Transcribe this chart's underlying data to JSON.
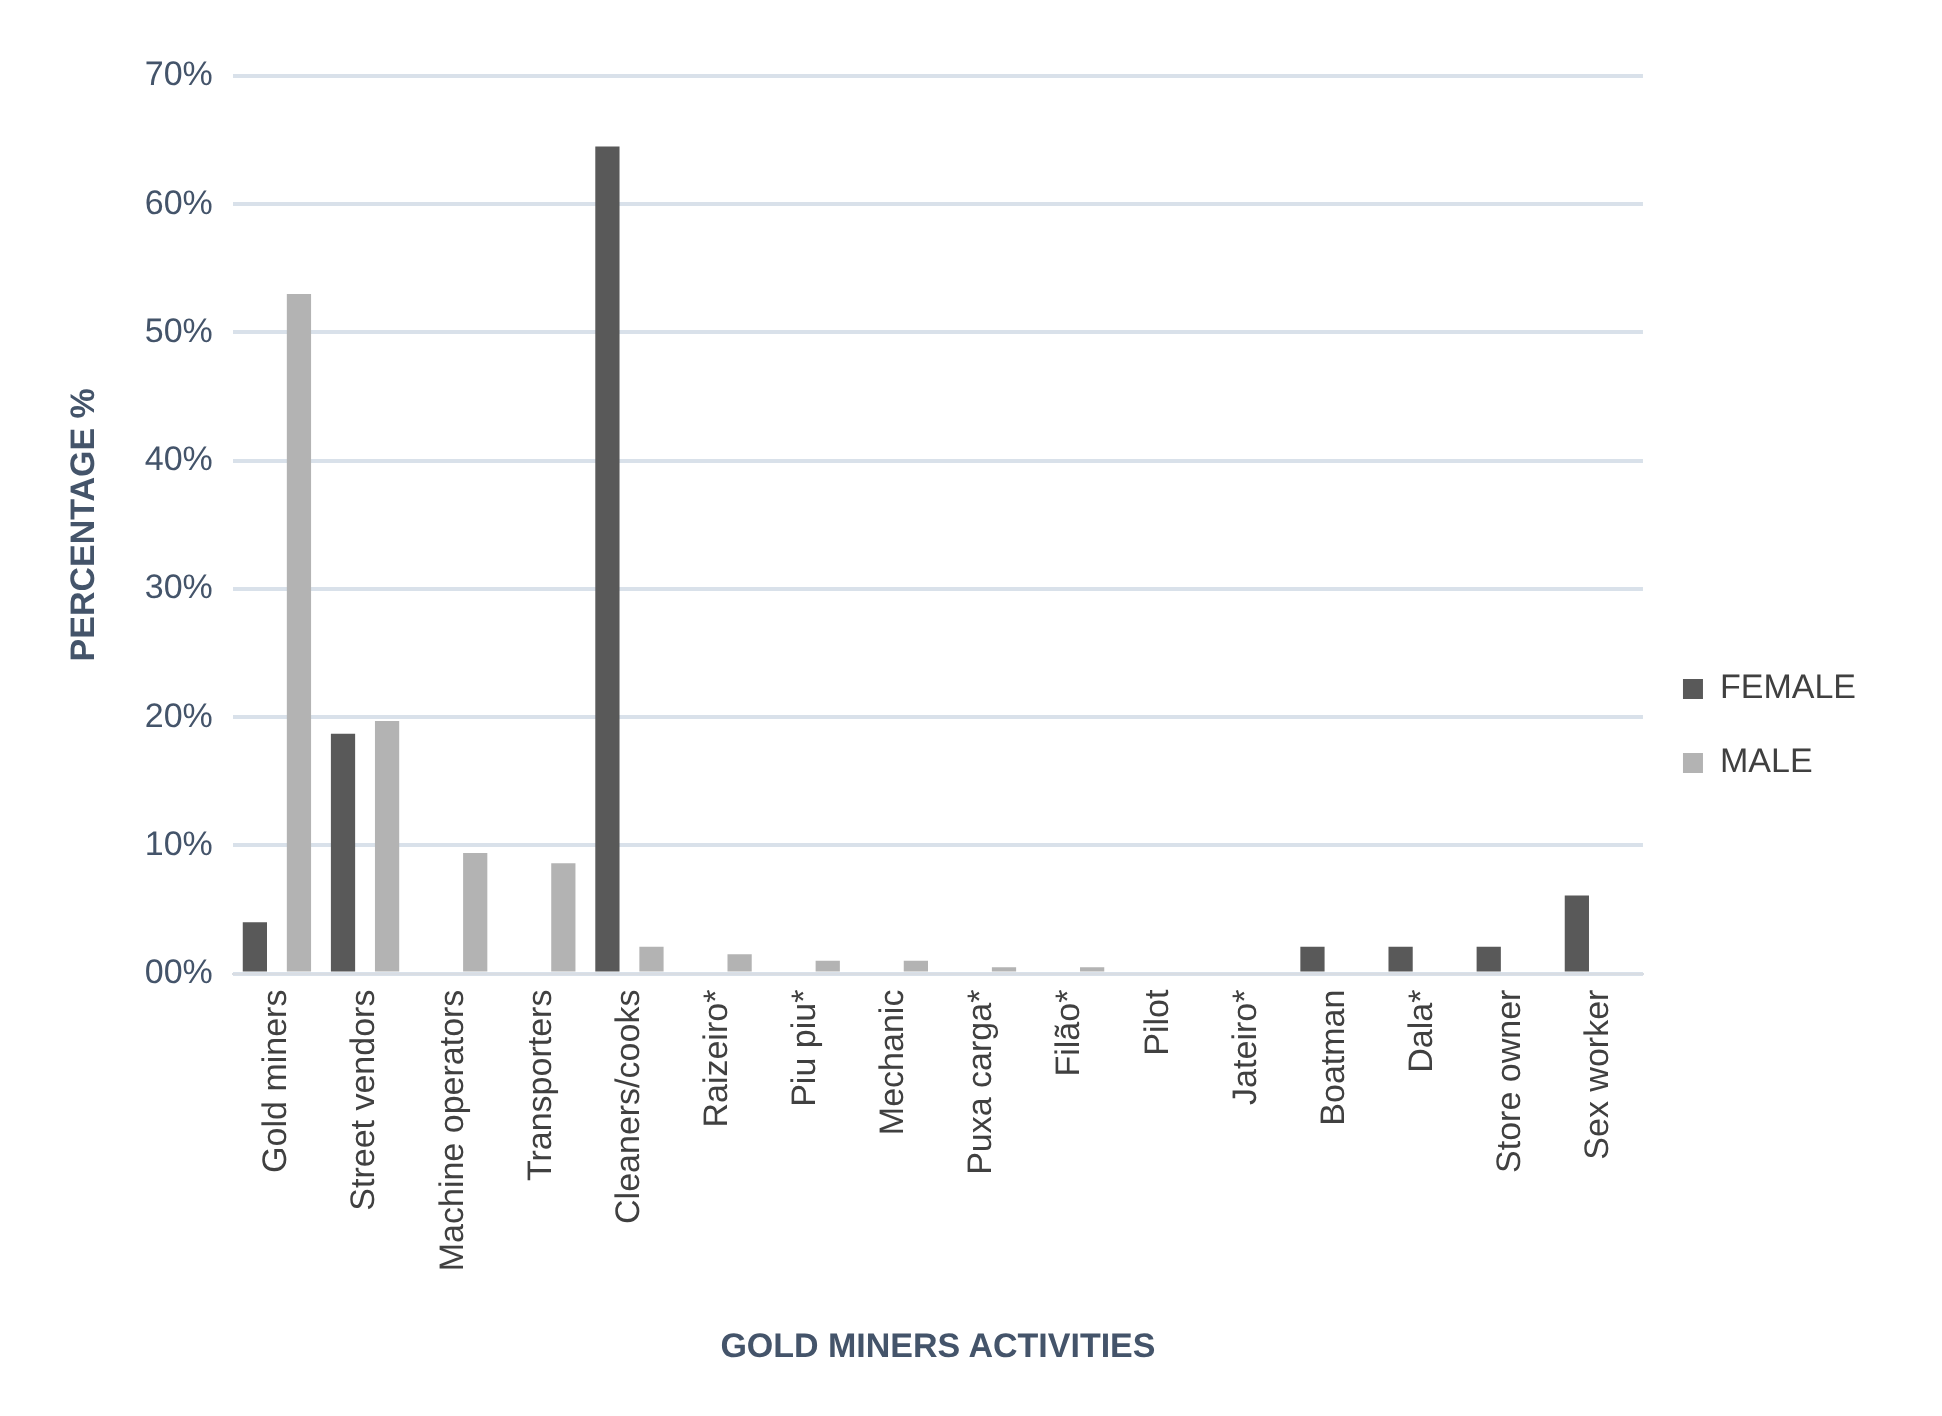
{
  "chart_data": {
    "type": "bar",
    "xlabel": "GOLD MINERS ACTIVITIES",
    "ylabel": "PERCENTAGE %",
    "categories": [
      "Gold miners",
      "Street vendors",
      "Machine operators",
      "Transporters",
      "Cleaners/cooks",
      "Raizeiro*",
      "Piu piu*",
      "Mechanic",
      "Puxa carga*",
      "Filão*",
      "Pilot",
      "Jateiro*",
      "Boatman",
      "Dala*",
      "Store owner",
      "Sex worker"
    ],
    "series": [
      {
        "name": "FEMALE",
        "color": "#595959",
        "values": [
          4.0,
          18.7,
          0,
          0,
          64.5,
          0,
          0,
          0,
          0,
          0,
          0,
          0,
          2.1,
          2.1,
          2.1,
          6.1
        ]
      },
      {
        "name": "MALE",
        "color": "#b3b3b3",
        "values": [
          53.0,
          19.7,
          9.4,
          8.6,
          2.1,
          1.5,
          1.0,
          1.0,
          0.5,
          0.5,
          0,
          0,
          0,
          0,
          0,
          0
        ]
      }
    ],
    "ylim": [
      0,
      70
    ],
    "yticks": [
      {
        "value": 0,
        "label": "00%"
      },
      {
        "value": 10,
        "label": "10%"
      },
      {
        "value": 20,
        "label": "20%"
      },
      {
        "value": 30,
        "label": "30%"
      },
      {
        "value": 40,
        "label": "40%"
      },
      {
        "value": 50,
        "label": "50%"
      },
      {
        "value": 60,
        "label": "60%"
      },
      {
        "value": 70,
        "label": "70%"
      }
    ],
    "grid": "y",
    "legend": "right"
  }
}
